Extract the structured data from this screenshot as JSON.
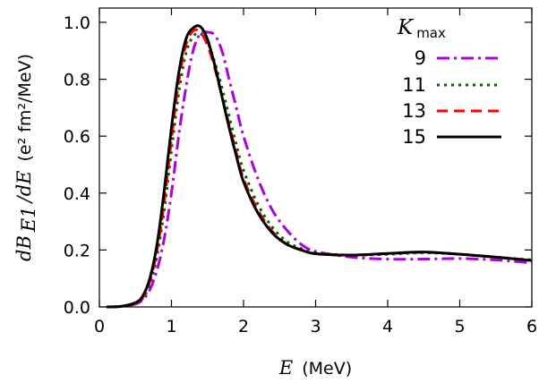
{
  "chart_data": {
    "type": "line",
    "xlabel_symbol": "E",
    "xlabel_unit": "(MeV)",
    "ylabel_main": "dB",
    "ylabel_sub": "E1",
    "ylabel_rest": "/dE",
    "ylabel_unit": "(e² fm²/MeV)",
    "xlim": [
      0,
      6
    ],
    "ylim": [
      0,
      1.05
    ],
    "xticks": [
      "0",
      "1",
      "2",
      "3",
      "4",
      "5",
      "6"
    ],
    "yticks": [
      "0.0",
      "0.2",
      "0.4",
      "0.6",
      "0.8",
      "1.0"
    ],
    "legend_title_main": "K",
    "legend_title_sub": "max",
    "legend_position": "top-right",
    "series": [
      {
        "name": "9",
        "color": "#b000e0",
        "dash": "dash-dot",
        "x": [
          0.1,
          0.3,
          0.5,
          0.6,
          0.7,
          0.8,
          0.9,
          1.0,
          1.1,
          1.2,
          1.3,
          1.4,
          1.5,
          1.6,
          1.7,
          1.8,
          1.9,
          2.0,
          2.2,
          2.4,
          2.6,
          2.8,
          3.0,
          3.5,
          4.0,
          4.5,
          5.0,
          5.5,
          6.0
        ],
        "y": [
          0.0,
          0.002,
          0.01,
          0.025,
          0.06,
          0.13,
          0.24,
          0.4,
          0.6,
          0.77,
          0.9,
          0.96,
          0.965,
          0.955,
          0.9,
          0.8,
          0.7,
          0.6,
          0.45,
          0.34,
          0.27,
          0.22,
          0.195,
          0.175,
          0.168,
          0.168,
          0.17,
          0.165,
          0.155
        ]
      },
      {
        "name": "11",
        "color": "#006400",
        "dash": "dotted",
        "x": [
          0.1,
          0.3,
          0.5,
          0.6,
          0.7,
          0.8,
          0.9,
          1.0,
          1.1,
          1.2,
          1.3,
          1.4,
          1.5,
          1.6,
          1.7,
          1.8,
          1.9,
          2.0,
          2.2,
          2.4,
          2.6,
          2.8,
          3.0,
          3.5,
          4.0,
          4.5,
          5.0,
          5.5,
          6.0
        ],
        "y": [
          0.0,
          0.002,
          0.012,
          0.03,
          0.08,
          0.18,
          0.34,
          0.55,
          0.75,
          0.89,
          0.95,
          0.96,
          0.93,
          0.86,
          0.77,
          0.67,
          0.57,
          0.48,
          0.36,
          0.28,
          0.23,
          0.205,
          0.19,
          0.182,
          0.185,
          0.19,
          0.185,
          0.175,
          0.165
        ]
      },
      {
        "name": "13",
        "color": "#ff0000",
        "dash": "dashed",
        "x": [
          0.1,
          0.3,
          0.5,
          0.6,
          0.7,
          0.8,
          0.9,
          1.0,
          1.1,
          1.2,
          1.3,
          1.4,
          1.5,
          1.6,
          1.7,
          1.8,
          1.9,
          2.0,
          2.2,
          2.4,
          2.6,
          2.8,
          3.0,
          3.5,
          4.0,
          4.5,
          5.0,
          5.5,
          6.0
        ],
        "y": [
          0.0,
          0.002,
          0.013,
          0.033,
          0.09,
          0.2,
          0.37,
          0.59,
          0.79,
          0.92,
          0.97,
          0.965,
          0.92,
          0.84,
          0.74,
          0.64,
          0.54,
          0.45,
          0.34,
          0.265,
          0.22,
          0.2,
          0.187,
          0.182,
          0.187,
          0.192,
          0.185,
          0.175,
          0.163
        ]
      },
      {
        "name": "15",
        "color": "#000000",
        "dash": "solid",
        "x": [
          0.1,
          0.3,
          0.5,
          0.6,
          0.7,
          0.8,
          0.9,
          1.0,
          1.1,
          1.2,
          1.3,
          1.4,
          1.5,
          1.6,
          1.7,
          1.8,
          1.9,
          2.0,
          2.2,
          2.4,
          2.6,
          2.8,
          3.0,
          3.5,
          4.0,
          4.5,
          5.0,
          5.5,
          6.0
        ],
        "y": [
          0.0,
          0.002,
          0.015,
          0.038,
          0.1,
          0.22,
          0.41,
          0.63,
          0.82,
          0.94,
          0.98,
          0.985,
          0.94,
          0.85,
          0.74,
          0.63,
          0.53,
          0.44,
          0.33,
          0.26,
          0.22,
          0.2,
          0.187,
          0.182,
          0.188,
          0.193,
          0.185,
          0.175,
          0.163
        ]
      }
    ]
  }
}
